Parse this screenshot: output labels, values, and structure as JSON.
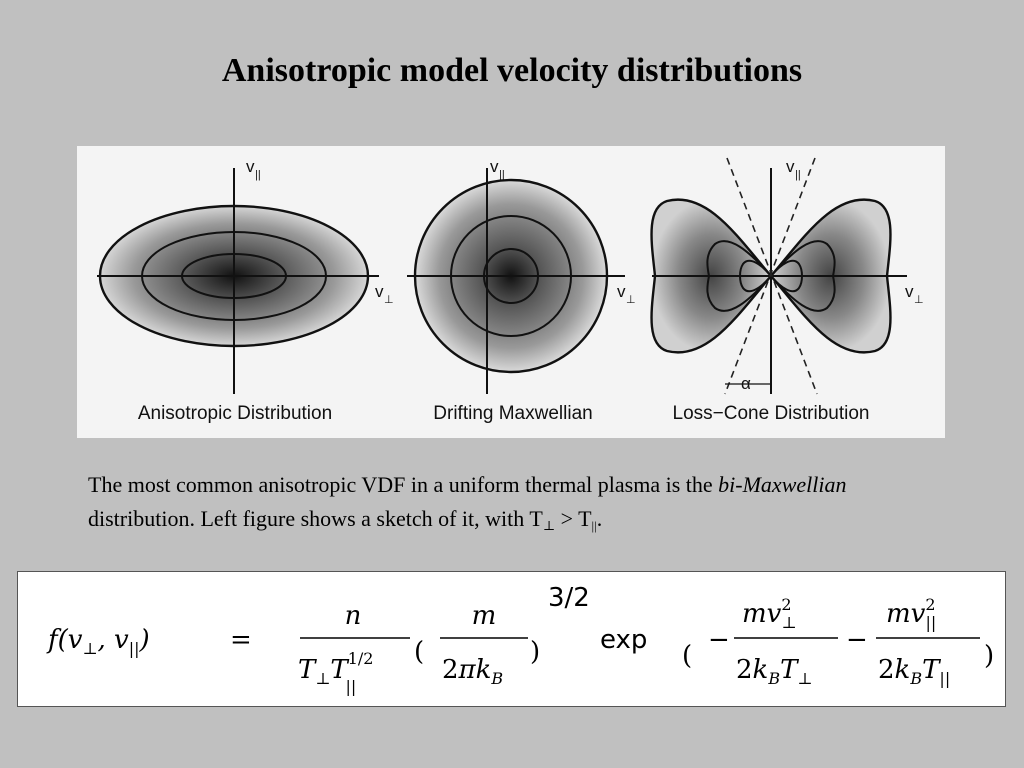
{
  "slide": {
    "title": "Anisotropic model velocity distributions"
  },
  "figure": {
    "panels": [
      {
        "caption": "Anisotropic Distribution",
        "axis_y": "v",
        "axis_y_sub": "||",
        "axis_x": "v",
        "axis_x_sub": "⊥"
      },
      {
        "caption": "Drifting Maxwellian",
        "axis_y": "v",
        "axis_y_sub": "||",
        "axis_x": "v",
        "axis_x_sub": "⊥"
      },
      {
        "caption": "Loss−Cone Distribution",
        "axis_y": "v",
        "axis_y_sub": "||",
        "axis_x": "v",
        "axis_x_sub": "⊥",
        "angle_label": "α"
      }
    ]
  },
  "body": {
    "text_start": "The most common anisotropic VDF in a uniform thermal plasma is the ",
    "italic_term": "bi-Maxwellian",
    "text_mid": " distribution. Left figure shows a sketch of it, with ",
    "t_perp": "T",
    "perp_sub": "⊥",
    "gt": " > ",
    "t_par": "T",
    "par_sub": "||",
    "period": "."
  },
  "equation": {
    "lhs": "f(v⊥, v||)",
    "equals": "=",
    "numerator_n": "n",
    "denominator_1": "T⊥T||^(1/2)",
    "numerator_m": "m",
    "denominator_2": "2πkB",
    "exponent": "3/2",
    "exp": "exp",
    "term1_num": "mv⊥²",
    "term1_den": "2kBT⊥",
    "term2_num": "mv||²",
    "term2_den": "2kBT||"
  }
}
